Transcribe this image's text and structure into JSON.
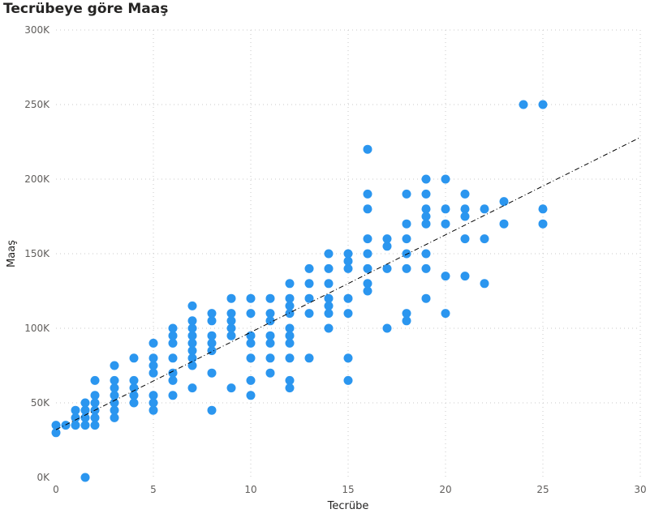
{
  "chart_data": {
    "type": "scatter",
    "title": "Tecrübeye göre Maaş",
    "xlabel": "Tecrübe",
    "ylabel": "Maaş",
    "xlim": [
      0,
      30
    ],
    "ylim": [
      0,
      300000
    ],
    "x_ticks": [
      0,
      5,
      10,
      15,
      20,
      25,
      30
    ],
    "x_tick_labels": [
      "0",
      "5",
      "10",
      "15",
      "20",
      "25",
      "30"
    ],
    "y_ticks": [
      0,
      50000,
      100000,
      150000,
      200000,
      250000,
      300000
    ],
    "y_tick_labels": [
      "0K",
      "50K",
      "100K",
      "150K",
      "200K",
      "250K",
      "300K"
    ],
    "grid": true,
    "marker_color": "#2b96ef",
    "trendline": {
      "x0": 0,
      "y0": 32000,
      "x1": 30,
      "y1": 228000
    },
    "points": [
      {
        "x": 0,
        "y": 30000
      },
      {
        "x": 0,
        "y": 35000
      },
      {
        "x": 0.5,
        "y": 35000
      },
      {
        "x": 1,
        "y": 35000
      },
      {
        "x": 1,
        "y": 40000
      },
      {
        "x": 1,
        "y": 45000
      },
      {
        "x": 1.5,
        "y": 0
      },
      {
        "x": 1.5,
        "y": 35000
      },
      {
        "x": 1.5,
        "y": 40000
      },
      {
        "x": 1.5,
        "y": 45000
      },
      {
        "x": 1.5,
        "y": 50000
      },
      {
        "x": 2,
        "y": 35000
      },
      {
        "x": 2,
        "y": 40000
      },
      {
        "x": 2,
        "y": 45000
      },
      {
        "x": 2,
        "y": 50000
      },
      {
        "x": 2,
        "y": 55000
      },
      {
        "x": 2,
        "y": 65000
      },
      {
        "x": 3,
        "y": 40000
      },
      {
        "x": 3,
        "y": 45000
      },
      {
        "x": 3,
        "y": 50000
      },
      {
        "x": 3,
        "y": 55000
      },
      {
        "x": 3,
        "y": 60000
      },
      {
        "x": 3,
        "y": 65000
      },
      {
        "x": 3,
        "y": 75000
      },
      {
        "x": 4,
        "y": 50000
      },
      {
        "x": 4,
        "y": 55000
      },
      {
        "x": 4,
        "y": 60000
      },
      {
        "x": 4,
        "y": 65000
      },
      {
        "x": 4,
        "y": 80000
      },
      {
        "x": 5,
        "y": 45000
      },
      {
        "x": 5,
        "y": 50000
      },
      {
        "x": 5,
        "y": 55000
      },
      {
        "x": 5,
        "y": 70000
      },
      {
        "x": 5,
        "y": 75000
      },
      {
        "x": 5,
        "y": 80000
      },
      {
        "x": 5,
        "y": 90000
      },
      {
        "x": 6,
        "y": 55000
      },
      {
        "x": 6,
        "y": 65000
      },
      {
        "x": 6,
        "y": 70000
      },
      {
        "x": 6,
        "y": 80000
      },
      {
        "x": 6,
        "y": 90000
      },
      {
        "x": 6,
        "y": 95000
      },
      {
        "x": 6,
        "y": 100000
      },
      {
        "x": 7,
        "y": 60000
      },
      {
        "x": 7,
        "y": 75000
      },
      {
        "x": 7,
        "y": 80000
      },
      {
        "x": 7,
        "y": 85000
      },
      {
        "x": 7,
        "y": 90000
      },
      {
        "x": 7,
        "y": 95000
      },
      {
        "x": 7,
        "y": 100000
      },
      {
        "x": 7,
        "y": 105000
      },
      {
        "x": 7,
        "y": 115000
      },
      {
        "x": 8,
        "y": 45000
      },
      {
        "x": 8,
        "y": 70000
      },
      {
        "x": 8,
        "y": 85000
      },
      {
        "x": 8,
        "y": 90000
      },
      {
        "x": 8,
        "y": 95000
      },
      {
        "x": 8,
        "y": 105000
      },
      {
        "x": 8,
        "y": 110000
      },
      {
        "x": 9,
        "y": 60000
      },
      {
        "x": 9,
        "y": 95000
      },
      {
        "x": 9,
        "y": 100000
      },
      {
        "x": 9,
        "y": 105000
      },
      {
        "x": 9,
        "y": 110000
      },
      {
        "x": 9,
        "y": 120000
      },
      {
        "x": 10,
        "y": 55000
      },
      {
        "x": 10,
        "y": 65000
      },
      {
        "x": 10,
        "y": 80000
      },
      {
        "x": 10,
        "y": 90000
      },
      {
        "x": 10,
        "y": 95000
      },
      {
        "x": 10,
        "y": 110000
      },
      {
        "x": 10,
        "y": 120000
      },
      {
        "x": 11,
        "y": 70000
      },
      {
        "x": 11,
        "y": 80000
      },
      {
        "x": 11,
        "y": 90000
      },
      {
        "x": 11,
        "y": 95000
      },
      {
        "x": 11,
        "y": 105000
      },
      {
        "x": 11,
        "y": 110000
      },
      {
        "x": 11,
        "y": 120000
      },
      {
        "x": 12,
        "y": 60000
      },
      {
        "x": 12,
        "y": 65000
      },
      {
        "x": 12,
        "y": 80000
      },
      {
        "x": 12,
        "y": 90000
      },
      {
        "x": 12,
        "y": 95000
      },
      {
        "x": 12,
        "y": 100000
      },
      {
        "x": 12,
        "y": 110000
      },
      {
        "x": 12,
        "y": 115000
      },
      {
        "x": 12,
        "y": 120000
      },
      {
        "x": 12,
        "y": 130000
      },
      {
        "x": 13,
        "y": 80000
      },
      {
        "x": 13,
        "y": 110000
      },
      {
        "x": 13,
        "y": 120000
      },
      {
        "x": 13,
        "y": 130000
      },
      {
        "x": 13,
        "y": 140000
      },
      {
        "x": 14,
        "y": 100000
      },
      {
        "x": 14,
        "y": 110000
      },
      {
        "x": 14,
        "y": 115000
      },
      {
        "x": 14,
        "y": 120000
      },
      {
        "x": 14,
        "y": 130000
      },
      {
        "x": 14,
        "y": 140000
      },
      {
        "x": 14,
        "y": 150000
      },
      {
        "x": 15,
        "y": 65000
      },
      {
        "x": 15,
        "y": 80000
      },
      {
        "x": 15,
        "y": 110000
      },
      {
        "x": 15,
        "y": 120000
      },
      {
        "x": 15,
        "y": 140000
      },
      {
        "x": 15,
        "y": 145000
      },
      {
        "x": 15,
        "y": 150000
      },
      {
        "x": 16,
        "y": 125000
      },
      {
        "x": 16,
        "y": 130000
      },
      {
        "x": 16,
        "y": 140000
      },
      {
        "x": 16,
        "y": 150000
      },
      {
        "x": 16,
        "y": 160000
      },
      {
        "x": 16,
        "y": 180000
      },
      {
        "x": 16,
        "y": 190000
      },
      {
        "x": 16,
        "y": 220000
      },
      {
        "x": 17,
        "y": 100000
      },
      {
        "x": 17,
        "y": 140000
      },
      {
        "x": 17,
        "y": 155000
      },
      {
        "x": 17,
        "y": 160000
      },
      {
        "x": 18,
        "y": 105000
      },
      {
        "x": 18,
        "y": 110000
      },
      {
        "x": 18,
        "y": 140000
      },
      {
        "x": 18,
        "y": 150000
      },
      {
        "x": 18,
        "y": 160000
      },
      {
        "x": 18,
        "y": 170000
      },
      {
        "x": 18,
        "y": 190000
      },
      {
        "x": 19,
        "y": 120000
      },
      {
        "x": 19,
        "y": 140000
      },
      {
        "x": 19,
        "y": 150000
      },
      {
        "x": 19,
        "y": 170000
      },
      {
        "x": 19,
        "y": 175000
      },
      {
        "x": 19,
        "y": 180000
      },
      {
        "x": 19,
        "y": 190000
      },
      {
        "x": 19,
        "y": 200000
      },
      {
        "x": 20,
        "y": 110000
      },
      {
        "x": 20,
        "y": 135000
      },
      {
        "x": 20,
        "y": 170000
      },
      {
        "x": 20,
        "y": 180000
      },
      {
        "x": 20,
        "y": 200000
      },
      {
        "x": 21,
        "y": 135000
      },
      {
        "x": 21,
        "y": 160000
      },
      {
        "x": 21,
        "y": 175000
      },
      {
        "x": 21,
        "y": 180000
      },
      {
        "x": 21,
        "y": 190000
      },
      {
        "x": 22,
        "y": 130000
      },
      {
        "x": 22,
        "y": 160000
      },
      {
        "x": 22,
        "y": 180000
      },
      {
        "x": 23,
        "y": 170000
      },
      {
        "x": 23,
        "y": 185000
      },
      {
        "x": 24,
        "y": 250000
      },
      {
        "x": 25,
        "y": 170000
      },
      {
        "x": 25,
        "y": 180000
      },
      {
        "x": 25,
        "y": 250000
      }
    ]
  }
}
